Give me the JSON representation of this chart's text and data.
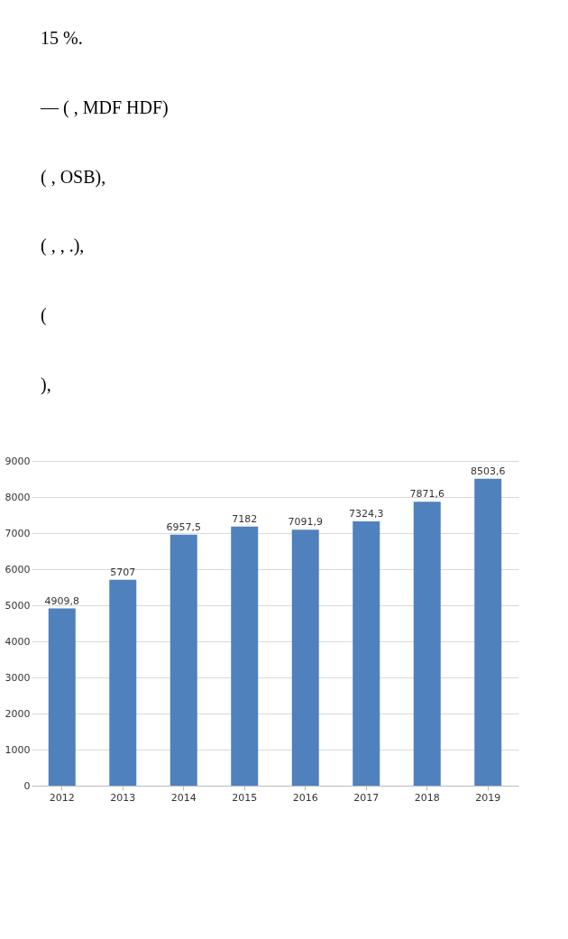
{
  "chart_data": {
    "type": "bar",
    "categories": [
      "2012",
      "2013",
      "2014",
      "2015",
      "2016",
      "2017",
      "2018",
      "2019"
    ],
    "values": [
      4909.8,
      5707,
      6957.5,
      7182,
      7091.9,
      7324.3,
      7871.6,
      8503.6
    ],
    "value_labels": [
      "4909,8",
      "5707",
      "6957,5",
      "7182",
      "7091,9",
      "7324,3",
      "7871,6",
      "8503,6"
    ],
    "color": "#4f81bd",
    "ylim": [
      0,
      9000
    ],
    "yticks": [
      0,
      1000,
      2000,
      3000,
      4000,
      5000,
      6000,
      7000,
      8000,
      9000
    ],
    "grid": "y",
    "annotations": [
      "15 %.",
      "—   (   , MDF   HDF)",
      "(   , OSB),",
      "(   ,   ,   .),",
      "(",
      "),"
    ]
  }
}
